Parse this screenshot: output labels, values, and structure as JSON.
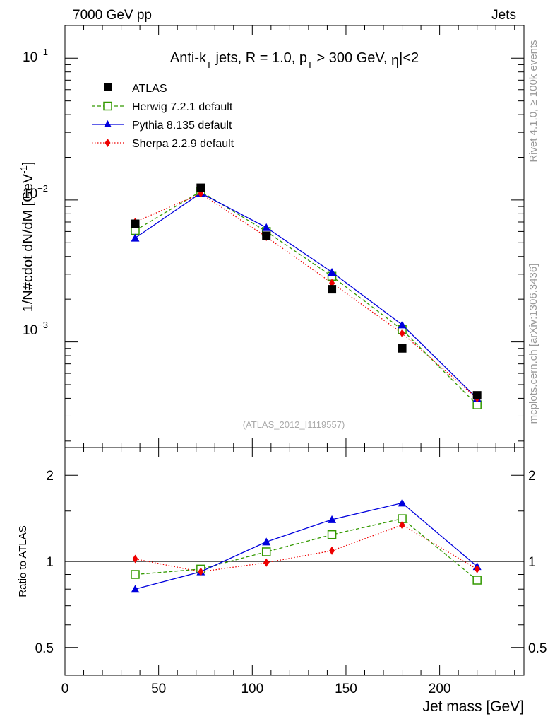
{
  "header": {
    "left": "7000 GeV pp",
    "right": "Jets"
  },
  "side_text": {
    "rivet": "Rivet 4.1.0, ≥ 100k events",
    "mcplots": "mcplots.cern.ch [arXiv:1306.3436]"
  },
  "chart_data": [
    {
      "type": "line",
      "yscale": "log",
      "title": "Anti-k_T jets, R = 1.0, p_T > 300 GeV, |η|<2",
      "title_parts": {
        "a": "Anti-k",
        "a_sub": "T",
        "b": " jets, R = 1.0, p",
        "b_sub": "T",
        "c": " > 300 GeV, ",
        "eta": "η",
        "d": "|<2"
      },
      "ylabel": "1/N#cdot dN/dM [GeV⁻¹]",
      "ylabel_parts": {
        "main": "1/N#cdot dN/dM [GeV",
        "sup": "-1",
        "end": "]"
      },
      "xlabel": "Jet mass [GeV]",
      "xlim": [
        0,
        245
      ],
      "ylim": [
        0.00018,
        0.17
      ],
      "y_tick_labels": [
        {
          "value": 0.1,
          "base": "10",
          "exp": "−1"
        },
        {
          "value": 0.01,
          "base": "10",
          "exp": "−2"
        },
        {
          "value": 0.001,
          "base": "10",
          "exp": "−3"
        }
      ],
      "watermark": "(ATLAS_2012_I1119557)",
      "legend_position": "top-left",
      "x": [
        37.5,
        72.5,
        107.5,
        142.5,
        180,
        220
      ],
      "series": [
        {
          "name": "ATLAS",
          "color": "#000000",
          "marker": "square-filled",
          "line": "none",
          "values": [
            0.0068,
            0.0122,
            0.0056,
            0.00235,
            0.0009,
            0.00042
          ]
        },
        {
          "name": "Herwig 7.2.1 default",
          "color": "#339900",
          "marker": "square-open",
          "line": "dashed",
          "values": [
            0.0061,
            0.0115,
            0.006,
            0.0029,
            0.00122,
            0.00036
          ]
        },
        {
          "name": "Pythia 8.135 default",
          "color": "#0000dd",
          "marker": "triangle-filled",
          "line": "solid",
          "values": [
            0.0054,
            0.0112,
            0.0064,
            0.0031,
            0.00132,
            0.0004
          ]
        },
        {
          "name": "Sherpa 2.2.9 default",
          "color": "#ee0000",
          "marker": "diamond-filled",
          "line": "dotted",
          "values": [
            0.007,
            0.0111,
            0.0055,
            0.0026,
            0.00115,
            0.0004
          ]
        }
      ]
    },
    {
      "type": "line",
      "yscale": "log",
      "ylabel": "Ratio to ATLAS",
      "xlabel": "Jet mass [GeV]",
      "xlim": [
        0,
        245
      ],
      "ylim": [
        0.4,
        2.5
      ],
      "x_ticks": [
        0,
        50,
        100,
        150,
        200
      ],
      "y_ticks": [
        0.5,
        1,
        2
      ],
      "reference_line": 1,
      "x": [
        37.5,
        72.5,
        107.5,
        142.5,
        180,
        220
      ],
      "series": [
        {
          "name": "Herwig 7.2.1 default",
          "values": [
            0.9,
            0.94,
            1.08,
            1.24,
            1.41,
            0.86
          ]
        },
        {
          "name": "Pythia 8.135 default",
          "values": [
            0.8,
            0.92,
            1.17,
            1.4,
            1.6,
            0.96
          ]
        },
        {
          "name": "Sherpa 2.2.9 default",
          "values": [
            1.02,
            0.92,
            0.99,
            1.09,
            1.34,
            0.94
          ]
        }
      ]
    }
  ]
}
